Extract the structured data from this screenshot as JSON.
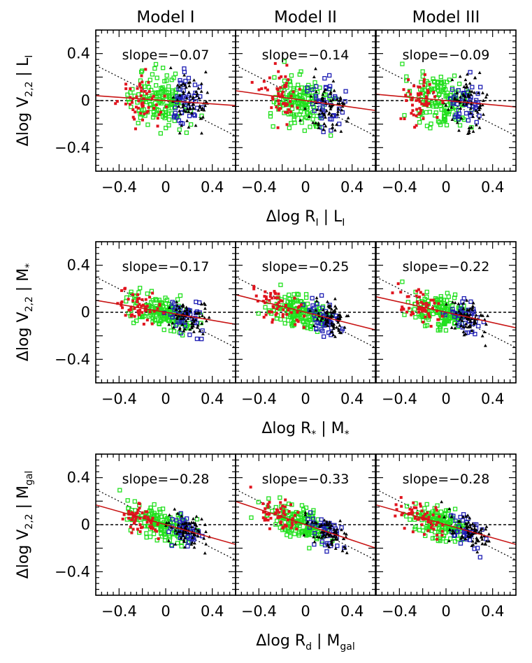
{
  "columns": [
    "Model I",
    "Model II",
    "Model III"
  ],
  "rows": [
    {
      "ylabel_main": "Δlog  V",
      "ylabel_sub": "2,2",
      "ylabel_cond": "| L",
      "ylabel_cond_sub": "I",
      "xlabel_main": "Δlog  R",
      "xlabel_sub": "I",
      "xlabel_cond": "| L",
      "xlabel_cond_sub": "I"
    },
    {
      "ylabel_main": "Δlog  V",
      "ylabel_sub": "2,2",
      "ylabel_cond": "| M",
      "ylabel_cond_sub": "*",
      "xlabel_main": "Δlog  R",
      "xlabel_sub": "*",
      "xlabel_cond": "| M",
      "xlabel_cond_sub": "*"
    },
    {
      "ylabel_main": "Δlog  V",
      "ylabel_sub": "2,2",
      "ylabel_cond": "| M",
      "ylabel_cond_sub": "gal",
      "xlabel_main": "Δlog  R",
      "xlabel_sub": "d",
      "xlabel_cond": "| M",
      "xlabel_cond_sub": "gal"
    }
  ],
  "colors": {
    "red": "#e0141e",
    "green": "#22e01e",
    "blue": "#1e1eb4",
    "black": "#000000",
    "fit": "#c81414"
  },
  "chart_data": {
    "type": "scatter",
    "layout": "3x3 grid",
    "xlim": [
      -0.6,
      0.6
    ],
    "ylim": [
      -0.6,
      0.6
    ],
    "x_ticks": [
      "-0.4",
      "0",
      "0.4"
    ],
    "y_ticks": [
      "0.4",
      "0",
      "-0.4"
    ],
    "x_tick_values": [
      -0.4,
      0,
      0.4
    ],
    "y_tick_values": [
      0.4,
      0,
      -0.4
    ],
    "reference_lines": {
      "horizontal_dashed": 0,
      "diagonal_dotted_slope": -0.5
    },
    "series_legend": [
      "red",
      "green",
      "blue",
      "black"
    ],
    "panels": [
      {
        "row": 0,
        "col": 0,
        "slope_text": "slope=−0.07",
        "slope": -0.07,
        "spread": 0.11
      },
      {
        "row": 0,
        "col": 1,
        "slope_text": "slope=−0.14",
        "slope": -0.14,
        "spread": 0.11
      },
      {
        "row": 0,
        "col": 2,
        "slope_text": "slope=−0.09",
        "slope": -0.09,
        "spread": 0.11
      },
      {
        "row": 1,
        "col": 0,
        "slope_text": "slope=−0.17",
        "slope": -0.17,
        "spread": 0.07
      },
      {
        "row": 1,
        "col": 1,
        "slope_text": "slope=−0.25",
        "slope": -0.25,
        "spread": 0.07
      },
      {
        "row": 1,
        "col": 2,
        "slope_text": "slope=−0.22",
        "slope": -0.22,
        "spread": 0.07
      },
      {
        "row": 2,
        "col": 0,
        "slope_text": "slope=−0.28",
        "slope": -0.28,
        "spread": 0.065
      },
      {
        "row": 2,
        "col": 1,
        "slope_text": "slope=−0.33",
        "slope": -0.33,
        "spread": 0.065
      },
      {
        "row": 2,
        "col": 2,
        "slope_text": "slope=−0.28",
        "slope": -0.28,
        "spread": 0.065
      }
    ]
  }
}
